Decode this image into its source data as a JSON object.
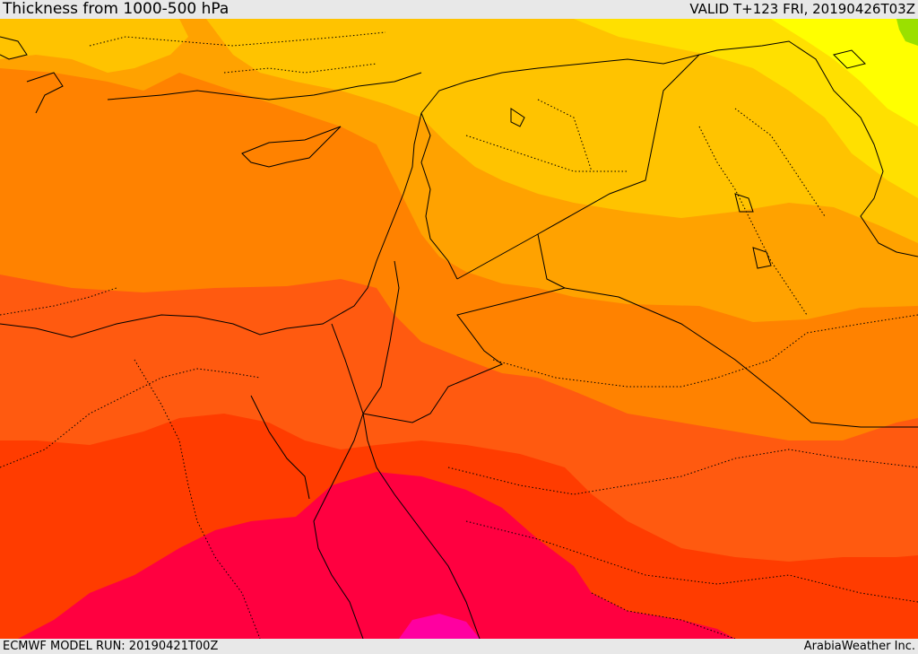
{
  "header": {
    "title": "Thickness from 1000-500 hPa",
    "valid": "VALID T+123 FRI, 20190426T03Z"
  },
  "footer": {
    "model_run": "ECMWF MODEL RUN: 20190421T00Z",
    "credit": "ArabiaWeather Inc."
  },
  "map": {
    "type": "filled-contour thickness map",
    "colors": {
      "band_1": "#e84a00",
      "band_2": "#ff5a10",
      "band_3": "#ff8200",
      "band_4": "#ffa200",
      "band_5": "#ffc300",
      "band_6": "#ffe000",
      "band_7": "#ffff00",
      "band_8": "#9be000",
      "band_hot_1": "#ff3c00",
      "band_hot_2": "#ff0040",
      "band_hot_3": "#ff00a0",
      "coastline": "#000000",
      "border": "#000000"
    }
  }
}
